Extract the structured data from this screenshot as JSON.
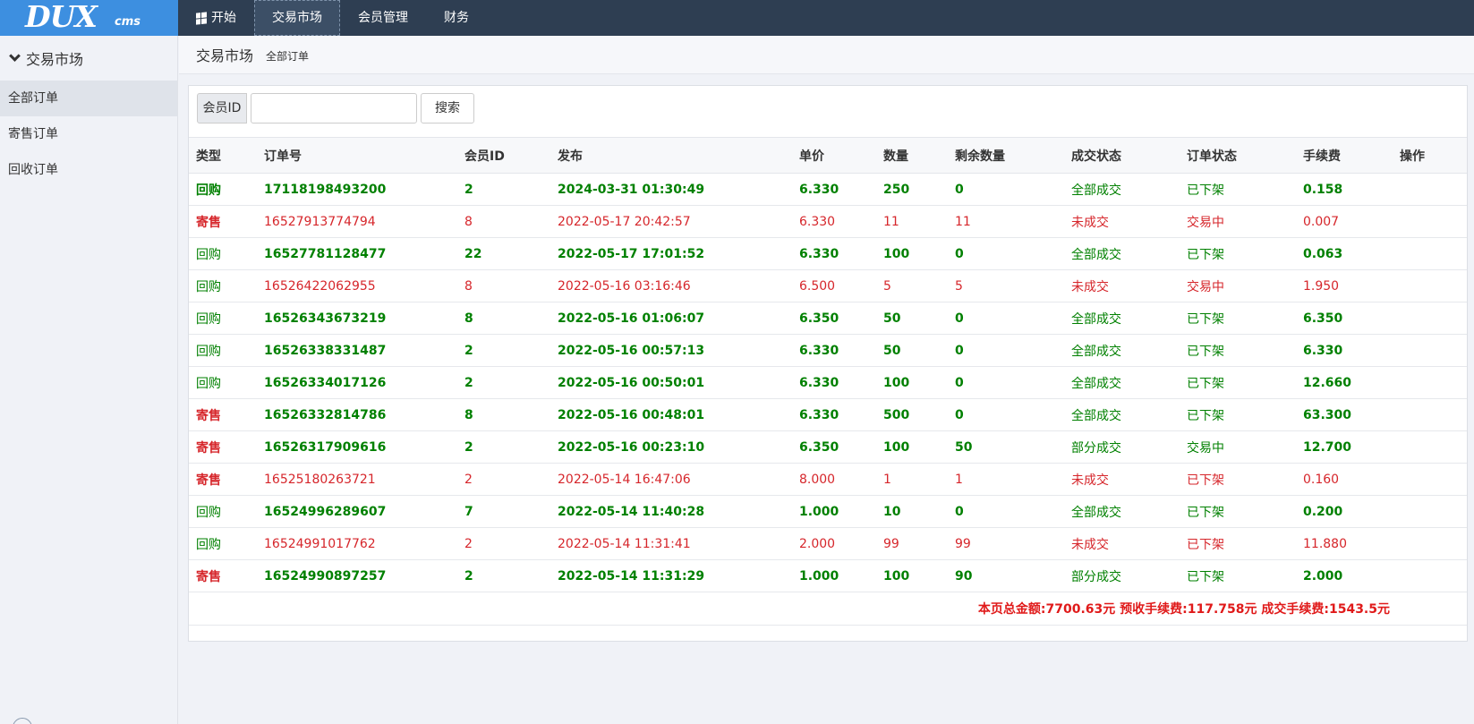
{
  "logo": {
    "big": "DUX",
    "small": "cms"
  },
  "nav": [
    {
      "label": "开始",
      "icon": "windows-icon"
    },
    {
      "label": "交易市场"
    },
    {
      "label": "会员管理"
    },
    {
      "label": "财务"
    }
  ],
  "sidebar": {
    "title": "交易市场",
    "items": [
      {
        "label": "全部订单"
      },
      {
        "label": "寄售订单"
      },
      {
        "label": "回收订单"
      }
    ]
  },
  "breadcrumb": {
    "title": "交易市场",
    "sub": "全部订单"
  },
  "search": {
    "addon": "会员ID",
    "value": "",
    "placeholder": "",
    "button": "搜索"
  },
  "table": {
    "headers": [
      "类型",
      "订单号",
      "会员ID",
      "发布",
      "单价",
      "数量",
      "剩余数量",
      "成交状态",
      "订单状态",
      "手续费",
      "操作"
    ],
    "rows": [
      {
        "type": "回购",
        "order": "17118198493200",
        "member": "2",
        "time": "2024-03-31 01:30:49",
        "price": "6.330",
        "qty": "250",
        "remain": "0",
        "deal": "全部成交",
        "status": "已下架",
        "fee": "0.158"
      },
      {
        "type": "寄售",
        "order": "16527913774794",
        "member": "8",
        "time": "2022-05-17 20:42:57",
        "price": "6.330",
        "qty": "11",
        "remain": "11",
        "deal": "未成交",
        "status": "交易中",
        "fee": "0.007"
      },
      {
        "type": "回购",
        "order": "16527781128477",
        "member": "22",
        "time": "2022-05-17 17:01:52",
        "price": "6.330",
        "qty": "100",
        "remain": "0",
        "deal": "全部成交",
        "status": "已下架",
        "fee": "0.063"
      },
      {
        "type": "回购",
        "order": "16526422062955",
        "member": "8",
        "time": "2022-05-16 03:16:46",
        "price": "6.500",
        "qty": "5",
        "remain": "5",
        "deal": "未成交",
        "status": "交易中",
        "fee": "1.950"
      },
      {
        "type": "回购",
        "order": "16526343673219",
        "member": "8",
        "time": "2022-05-16 01:06:07",
        "price": "6.350",
        "qty": "50",
        "remain": "0",
        "deal": "全部成交",
        "status": "已下架",
        "fee": "6.350"
      },
      {
        "type": "回购",
        "order": "16526338331487",
        "member": "2",
        "time": "2022-05-16 00:57:13",
        "price": "6.330",
        "qty": "50",
        "remain": "0",
        "deal": "全部成交",
        "status": "已下架",
        "fee": "6.330"
      },
      {
        "type": "回购",
        "order": "16526334017126",
        "member": "2",
        "time": "2022-05-16 00:50:01",
        "price": "6.330",
        "qty": "100",
        "remain": "0",
        "deal": "全部成交",
        "status": "已下架",
        "fee": "12.660"
      },
      {
        "type": "寄售",
        "order": "16526332814786",
        "member": "8",
        "time": "2022-05-16 00:48:01",
        "price": "6.330",
        "qty": "500",
        "remain": "0",
        "deal": "全部成交",
        "status": "已下架",
        "fee": "63.300"
      },
      {
        "type": "寄售",
        "order": "16526317909616",
        "member": "2",
        "time": "2022-05-16 00:23:10",
        "price": "6.350",
        "qty": "100",
        "remain": "50",
        "deal": "部分成交",
        "status": "交易中",
        "fee": "12.700"
      },
      {
        "type": "寄售",
        "order": "16525180263721",
        "member": "2",
        "time": "2022-05-14 16:47:06",
        "price": "8.000",
        "qty": "1",
        "remain": "1",
        "deal": "未成交",
        "status": "已下架",
        "fee": "0.160"
      },
      {
        "type": "回购",
        "order": "16524996289607",
        "member": "7",
        "time": "2022-05-14 11:40:28",
        "price": "1.000",
        "qty": "10",
        "remain": "0",
        "deal": "全部成交",
        "status": "已下架",
        "fee": "0.200"
      },
      {
        "type": "回购",
        "order": "16524991017762",
        "member": "2",
        "time": "2022-05-14 11:31:41",
        "price": "2.000",
        "qty": "99",
        "remain": "99",
        "deal": "未成交",
        "status": "已下架",
        "fee": "11.880"
      },
      {
        "type": "寄售",
        "order": "16524990897257",
        "member": "2",
        "time": "2022-05-14 11:31:29",
        "price": "1.000",
        "qty": "100",
        "remain": "90",
        "deal": "部分成交",
        "status": "已下架",
        "fee": "2.000"
      }
    ],
    "summary": "本页总金额:7700.63元 预收手续费:117.758元 成交手续费:1543.5元"
  },
  "colors": {
    "topbar": "#2e3e52",
    "logo": "#3d8fe0",
    "green": "#008000",
    "red": "#d6262b"
  }
}
